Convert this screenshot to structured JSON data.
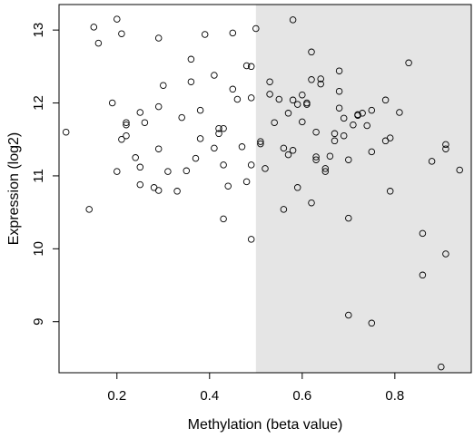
{
  "chart_data": {
    "type": "scatter",
    "title": "",
    "xlabel": "Methylation (beta value)",
    "ylabel": "Expression (log2)",
    "xlim": [
      0.075,
      0.965
    ],
    "ylim": [
      8.3,
      13.35
    ],
    "x_ticks": [
      0.2,
      0.4,
      0.6,
      0.8
    ],
    "x_tick_labels": [
      "0.2",
      "0.4",
      "0.6",
      "0.8"
    ],
    "y_ticks": [
      9,
      10,
      11,
      12,
      13
    ],
    "y_tick_labels": [
      "9",
      "10",
      "11",
      "12",
      "13"
    ],
    "grid": false,
    "legend": "none",
    "highlight_region": {
      "x_from": 0.5,
      "x_to": 0.965,
      "color": "#e5e5e5"
    },
    "marker_color": "#000000",
    "points": [
      [
        0.09,
        11.6
      ],
      [
        0.14,
        10.54
      ],
      [
        0.15,
        13.04
      ],
      [
        0.16,
        12.82
      ],
      [
        0.19,
        12.0
      ],
      [
        0.2,
        11.06
      ],
      [
        0.2,
        13.15
      ],
      [
        0.21,
        12.95
      ],
      [
        0.21,
        11.5
      ],
      [
        0.22,
        11.55
      ],
      [
        0.22,
        11.7
      ],
      [
        0.22,
        11.73
      ],
      [
        0.24,
        11.25
      ],
      [
        0.25,
        11.12
      ],
      [
        0.25,
        10.88
      ],
      [
        0.25,
        11.87
      ],
      [
        0.26,
        11.73
      ],
      [
        0.28,
        10.84
      ],
      [
        0.29,
        12.89
      ],
      [
        0.29,
        11.95
      ],
      [
        0.29,
        11.37
      ],
      [
        0.29,
        10.8
      ],
      [
        0.3,
        12.24
      ],
      [
        0.31,
        11.06
      ],
      [
        0.33,
        10.79
      ],
      [
        0.34,
        11.8
      ],
      [
        0.35,
        11.07
      ],
      [
        0.36,
        12.29
      ],
      [
        0.36,
        12.6
      ],
      [
        0.37,
        11.24
      ],
      [
        0.38,
        11.51
      ],
      [
        0.38,
        11.9
      ],
      [
        0.39,
        12.94
      ],
      [
        0.41,
        11.38
      ],
      [
        0.41,
        12.38
      ],
      [
        0.42,
        11.65
      ],
      [
        0.42,
        11.58
      ],
      [
        0.43,
        11.15
      ],
      [
        0.43,
        11.65
      ],
      [
        0.43,
        10.41
      ],
      [
        0.44,
        10.86
      ],
      [
        0.45,
        12.19
      ],
      [
        0.45,
        12.96
      ],
      [
        0.46,
        12.05
      ],
      [
        0.47,
        11.4
      ],
      [
        0.48,
        10.92
      ],
      [
        0.48,
        12.51
      ],
      [
        0.49,
        12.5
      ],
      [
        0.49,
        11.15
      ],
      [
        0.49,
        12.07
      ],
      [
        0.49,
        10.13
      ],
      [
        0.5,
        13.02
      ],
      [
        0.51,
        11.44
      ],
      [
        0.51,
        11.47
      ],
      [
        0.52,
        11.1
      ],
      [
        0.53,
        12.12
      ],
      [
        0.53,
        12.29
      ],
      [
        0.54,
        11.73
      ],
      [
        0.55,
        12.05
      ],
      [
        0.56,
        11.38
      ],
      [
        0.56,
        10.54
      ],
      [
        0.57,
        11.29
      ],
      [
        0.57,
        11.86
      ],
      [
        0.58,
        12.04
      ],
      [
        0.58,
        11.35
      ],
      [
        0.58,
        13.14
      ],
      [
        0.59,
        10.84
      ],
      [
        0.59,
        11.98
      ],
      [
        0.6,
        11.74
      ],
      [
        0.6,
        12.11
      ],
      [
        0.61,
        11.98
      ],
      [
        0.61,
        12.0
      ],
      [
        0.62,
        12.7
      ],
      [
        0.62,
        12.32
      ],
      [
        0.62,
        10.63
      ],
      [
        0.63,
        11.26
      ],
      [
        0.63,
        11.22
      ],
      [
        0.63,
        11.6
      ],
      [
        0.64,
        12.33
      ],
      [
        0.64,
        12.26
      ],
      [
        0.65,
        11.1
      ],
      [
        0.65,
        11.06
      ],
      [
        0.66,
        11.27
      ],
      [
        0.67,
        11.48
      ],
      [
        0.67,
        11.58
      ],
      [
        0.68,
        12.16
      ],
      [
        0.68,
        11.93
      ],
      [
        0.68,
        12.44
      ],
      [
        0.69,
        11.79
      ],
      [
        0.69,
        11.55
      ],
      [
        0.7,
        10.42
      ],
      [
        0.7,
        11.22
      ],
      [
        0.7,
        9.09
      ],
      [
        0.71,
        11.7
      ],
      [
        0.72,
        11.84
      ],
      [
        0.72,
        11.83
      ],
      [
        0.73,
        11.86
      ],
      [
        0.74,
        11.69
      ],
      [
        0.75,
        11.33
      ],
      [
        0.75,
        11.9
      ],
      [
        0.75,
        8.98
      ],
      [
        0.78,
        11.48
      ],
      [
        0.78,
        12.04
      ],
      [
        0.79,
        11.52
      ],
      [
        0.79,
        10.79
      ],
      [
        0.81,
        11.87
      ],
      [
        0.83,
        12.55
      ],
      [
        0.86,
        9.64
      ],
      [
        0.86,
        10.21
      ],
      [
        0.88,
        11.2
      ],
      [
        0.9,
        8.38
      ],
      [
        0.91,
        11.37
      ],
      [
        0.91,
        11.43
      ],
      [
        0.91,
        9.93
      ],
      [
        0.94,
        11.08
      ]
    ]
  }
}
